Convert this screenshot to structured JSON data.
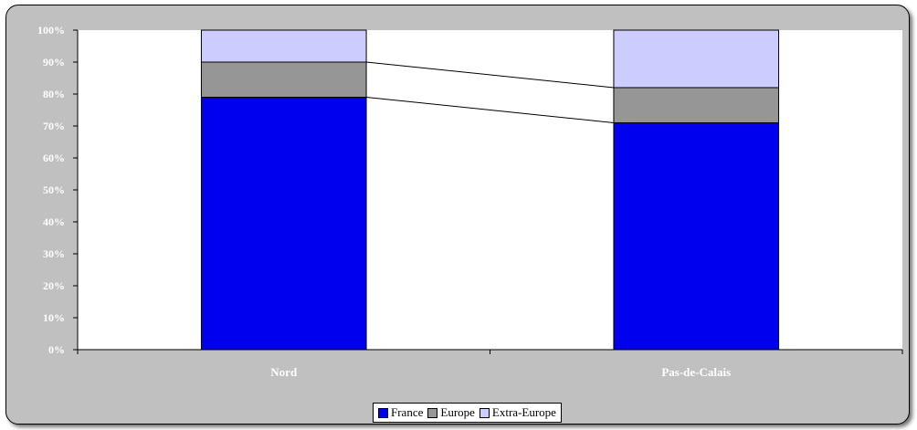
{
  "chart_data": {
    "type": "bar",
    "stacked": true,
    "categories": [
      "Nord",
      "Pas-de-Calais"
    ],
    "series": [
      {
        "name": "France",
        "values": [
          79,
          71
        ],
        "color": "#0000ee"
      },
      {
        "name": "Europe",
        "values": [
          11,
          11
        ],
        "color": "#969696"
      },
      {
        "name": "Extra-Europe",
        "values": [
          10,
          18
        ],
        "color": "#ccccff"
      }
    ],
    "y_ticks": [
      "0%",
      "10%",
      "20%",
      "30%",
      "40%",
      "50%",
      "60%",
      "70%",
      "80%",
      "90%",
      "100%"
    ],
    "ylim": [
      0,
      100
    ],
    "series_lines": true,
    "grid": false,
    "legend_position": "bottom",
    "colors": {
      "frame": "#c0c0c0",
      "plot": "#ffffff"
    }
  }
}
